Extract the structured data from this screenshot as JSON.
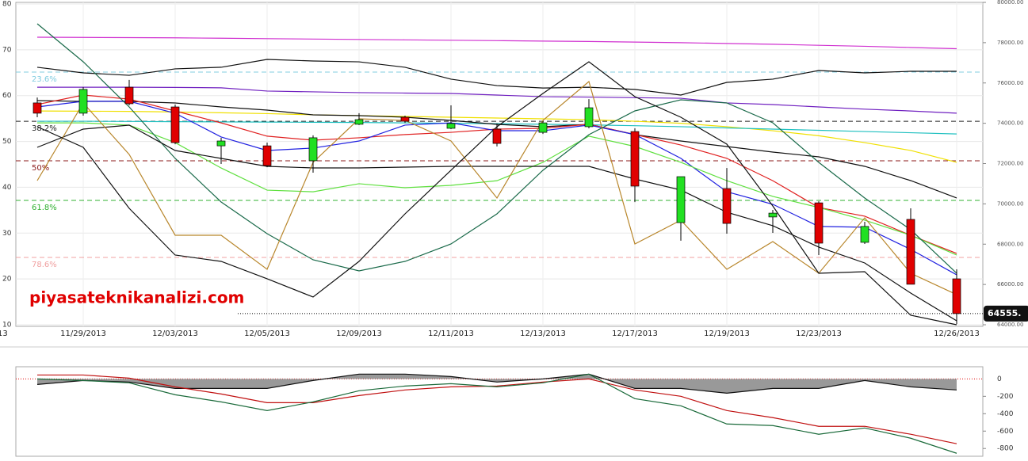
{
  "chart_data": [
    {
      "type": "candlestick",
      "left_edge_label": "13",
      "categories": [
        null,
        "11/29/2013",
        null,
        "12/03/2013",
        null,
        "12/05/2013",
        null,
        "12/09/2013",
        null,
        "12/11/2013",
        null,
        "12/13/2013",
        null,
        "12/17/2013",
        null,
        "12/19/2013",
        null,
        "12/23/2013",
        null,
        null,
        "12/26/2013"
      ],
      "open": [
        75010,
        74500,
        75790,
        74810,
        72880,
        72880,
        72140,
        73950,
        74300,
        73750,
        73710,
        73550,
        73830,
        73590,
        69070,
        70760,
        69350,
        70050,
        68090,
        69230,
        66280
      ],
      "high": [
        75280,
        75790,
        76150,
        74930,
        73280,
        73040,
        73400,
        74500,
        74380,
        74890,
        73990,
        74100,
        75200,
        73750,
        71350,
        71780,
        69700,
        70130,
        69110,
        69780,
        66750
      ],
      "low": [
        74300,
        74380,
        74890,
        72960,
        71980,
        71820,
        71550,
        73910,
        74020,
        73710,
        72850,
        73470,
        73750,
        70090,
        68170,
        68520,
        68560,
        67460,
        68010,
        66010,
        64040
      ],
      "close": [
        74500,
        75680,
        74970,
        73040,
        73120,
        71900,
        73280,
        74180,
        74100,
        73990,
        73000,
        74020,
        74770,
        70880,
        71350,
        69030,
        69540,
        68050,
        68880,
        66010,
        64555
      ],
      "up_color": "#22e022",
      "down_color": "#e00000",
      "ylim": [
        64000,
        80000
      ],
      "yticks": [
        {
          "value": 64000,
          "label": "64000.00"
        },
        {
          "value": 66000,
          "label": "66000.00"
        },
        {
          "value": 68000,
          "label": "68000.00"
        },
        {
          "value": 70000,
          "label": "70000.00"
        },
        {
          "value": 72000,
          "label": "72000.00"
        },
        {
          "value": 74000,
          "label": "74000.00"
        },
        {
          "value": 76000,
          "label": "76000.00"
        },
        {
          "value": 78000,
          "label": "78000.00"
        },
        {
          "value": 80000,
          "label": "80000.00"
        }
      ],
      "y2lim": [
        10,
        80
      ],
      "y2ticks": [
        10,
        20,
        30,
        40,
        50,
        60,
        70,
        80
      ],
      "y2_side": "left",
      "grid": true,
      "series": [
        {
          "color": "#d030d0",
          "values": [
            78270,
            78260,
            78250,
            78240,
            78220,
            78200,
            78180,
            78160,
            78140,
            78120,
            78100,
            78080,
            78060,
            78030,
            78000,
            77960,
            77920,
            77870,
            77820,
            77760,
            77700
          ]
        },
        {
          "color": "#111111",
          "values": [
            76780,
            76500,
            76380,
            76700,
            76780,
            77170,
            77090,
            77050,
            76780,
            76190,
            75870,
            75750,
            75790,
            75680,
            75400,
            76030,
            76190,
            76620,
            76500,
            76580,
            76580
          ]
        },
        {
          "color": "#7020c0",
          "values": [
            75790,
            75790,
            75790,
            75780,
            75760,
            75600,
            75560,
            75520,
            75500,
            75480,
            75400,
            75320,
            75300,
            75270,
            75240,
            75010,
            74930,
            74810,
            74700,
            74610,
            74500
          ]
        },
        {
          "color": "#f0e000",
          "values": [
            74610,
            74600,
            74590,
            74560,
            74520,
            74480,
            74420,
            74380,
            74340,
            74300,
            74260,
            74220,
            74180,
            74100,
            74000,
            73830,
            73630,
            73380,
            73040,
            72650,
            72060
          ]
        },
        {
          "color": "#20c0c0",
          "values": [
            74100,
            74100,
            74090,
            74080,
            74070,
            74060,
            74050,
            74040,
            74020,
            74000,
            73980,
            73950,
            73920,
            73880,
            73830,
            73770,
            73710,
            73650,
            73590,
            73530,
            73470
          ]
        },
        {
          "color": "#111111",
          "values": [
            75126,
            75086,
            75086,
            75008,
            74811,
            74654,
            74418,
            74379,
            74300,
            74143,
            73946,
            73828,
            73946,
            73435,
            73121,
            72846,
            72570,
            72335,
            71863,
            71155,
            70290
          ]
        },
        {
          "color": "#e02020",
          "values": [
            74930,
            75400,
            75200,
            74610,
            74020,
            73360,
            73160,
            73280,
            73440,
            73550,
            73710,
            73750,
            73950,
            73440,
            72920,
            72260,
            71150,
            69820,
            69390,
            68440,
            67540
          ]
        },
        {
          "color": "#2020e0",
          "values": [
            74810,
            75090,
            75090,
            74500,
            73320,
            72650,
            72770,
            73120,
            73910,
            74020,
            73630,
            73630,
            73910,
            73440,
            72260,
            70600,
            69980,
            68880,
            68840,
            67740,
            66480
          ]
        },
        {
          "color": "#60e040",
          "values": [
            74020,
            74020,
            73910,
            73040,
            71780,
            70680,
            70600,
            71000,
            70800,
            70920,
            71150,
            72060,
            73360,
            72850,
            72060,
            71150,
            70370,
            69820,
            69190,
            68440,
            67460
          ]
        },
        {
          "color": "#1a6a4a",
          "values": [
            78939,
            77052,
            74811,
            72256,
            70094,
            68521,
            67224,
            66673,
            67145,
            68010,
            69504,
            71666,
            73435,
            74615,
            75165,
            75008,
            74025,
            72059,
            70290,
            68718,
            66556
          ]
        },
        {
          "color": "#111111",
          "values": [
            72806,
            73710,
            73907,
            72649,
            72256,
            71863,
            71784,
            71784,
            71824,
            71863,
            71863,
            71863,
            71863,
            71234,
            70684,
            69583,
            68915,
            67854,
            67067,
            65573,
            64197
          ]
        },
        {
          "color": "#b8862b",
          "values": [
            71155,
            75008,
            72452,
            68443,
            68443,
            66752,
            72059,
            74221,
            74143,
            73121,
            70290,
            74143,
            76069,
            68010,
            69190,
            66752,
            68128,
            66556,
            69307,
            66556,
            65495
          ]
        },
        {
          "color": "#111111",
          "values": [
            73828,
            72806,
            69779,
            67460,
            67145,
            66281,
            65377,
            67145,
            69504,
            71666,
            73828,
            75479,
            77052,
            75322,
            74300,
            72963,
            69897,
            66556,
            66635,
            64473,
            64000
          ]
        }
      ],
      "levels": [
        {
          "label": "23.6%",
          "value": 76540,
          "color": "#80cce0"
        },
        {
          "label": "38.2%",
          "value": 74100,
          "color": "#222222"
        },
        {
          "label": "50%",
          "value": 72140,
          "color": "#8b1a1a"
        },
        {
          "label": "61.8%",
          "value": 70170,
          "color": "#30b030"
        },
        {
          "label": "78.6%",
          "value": 67340,
          "color": "#f0a0a0"
        }
      ],
      "last_price": 64555,
      "last_price_label": "64555.",
      "watermark": "piyasateknikanalizi.com"
    },
    {
      "type": "line",
      "ylim": [
        -880,
        140
      ],
      "yticks": [
        0,
        -200,
        -400,
        -600,
        -800
      ],
      "zero_color": "#e00000",
      "fill_color": "#999999",
      "series": [
        {
          "color": "#111111",
          "fill": true,
          "values": [
            -64,
            -18,
            -36,
            -109,
            -109,
            -109,
            -18,
            55,
            55,
            27,
            -36,
            0,
            55,
            -109,
            -109,
            -164,
            -109,
            -109,
            -18,
            -91,
            -127
          ]
        },
        {
          "color": "#c01010",
          "values": [
            45,
            45,
            9,
            -91,
            -173,
            -273,
            -273,
            -191,
            -127,
            -91,
            -82,
            -36,
            0,
            -127,
            -200,
            -364,
            -445,
            -545,
            -545,
            -636,
            -745
          ]
        },
        {
          "color": "#1a6a3a",
          "values": [
            0,
            -18,
            -45,
            -182,
            -264,
            -364,
            -264,
            -136,
            -82,
            -55,
            -91,
            -45,
            55,
            -227,
            -309,
            -518,
            -536,
            -636,
            -564,
            -682,
            -855
          ]
        }
      ]
    }
  ]
}
